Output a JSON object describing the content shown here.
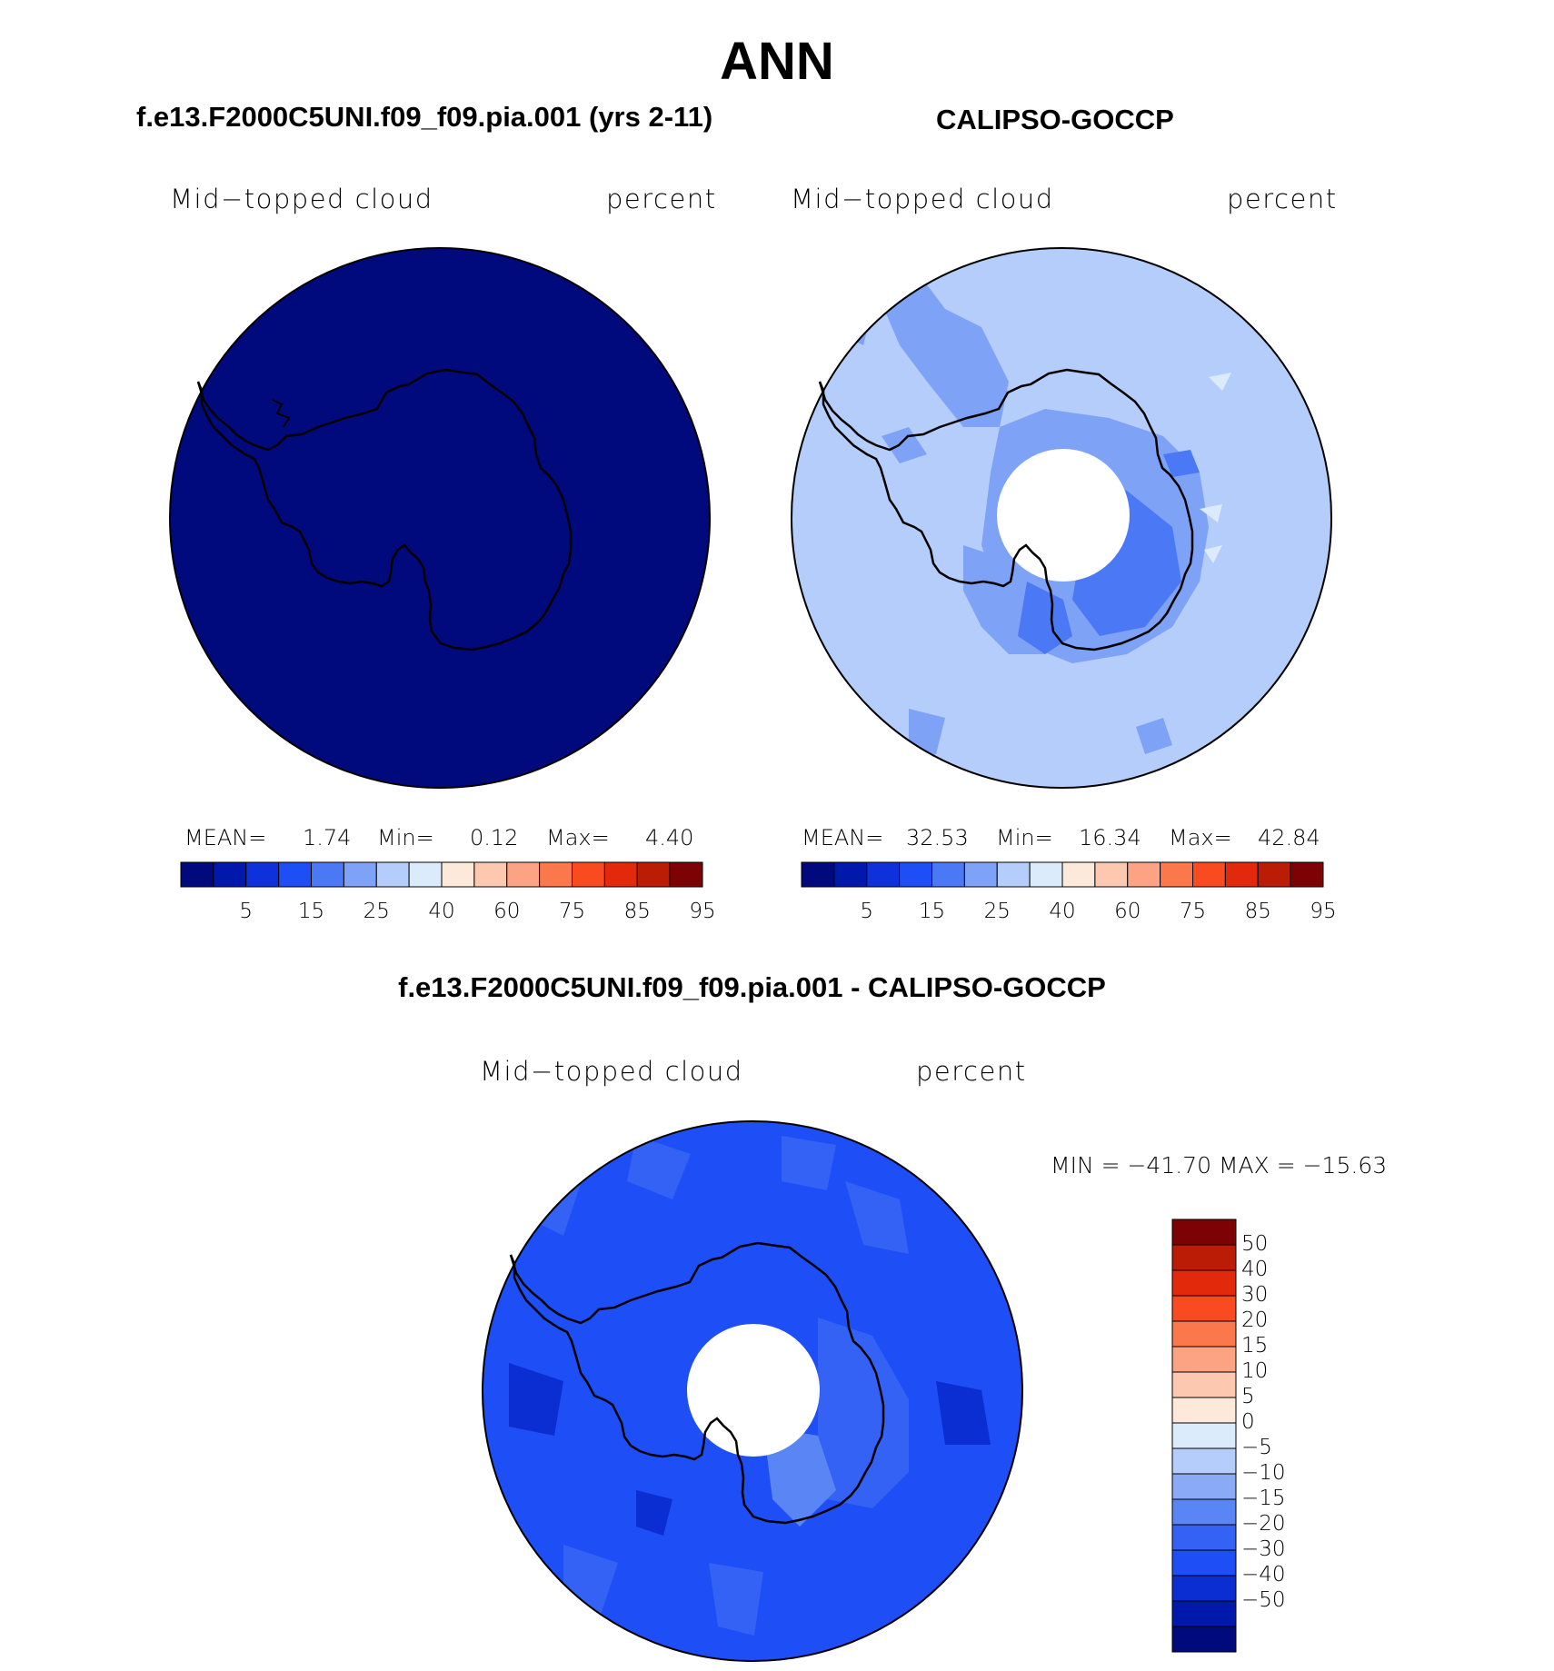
{
  "season": "ANN",
  "colors": {
    "abs_scale": [
      "#000a7d",
      "#0018ab",
      "#0f31dc",
      "#1e4ef5",
      "#4b78f5",
      "#7ea2f5",
      "#b4cdfa",
      "#dcebfc",
      "#fde9d9",
      "#fcc8b0",
      "#fba383",
      "#fb784d",
      "#fa4a1f",
      "#e3290c",
      "#bb1c06",
      "#7d0203"
    ],
    "diff_scale": [
      "#000a7d",
      "#0018ab",
      "#0a2ed2",
      "#1e4ef5",
      "#3362f5",
      "#5a86f5",
      "#8aaaf5",
      "#b4cdfa",
      "#dcebfc",
      "#fde9d9",
      "#fcc8b0",
      "#fba383",
      "#fb784d",
      "#fa4a1f",
      "#e3290c",
      "#bb1c06",
      "#7d0203"
    ]
  },
  "panels": {
    "model": {
      "title": "f.e13.F2000C5UNI.f09_f09.pia.001 (yrs 2-11)",
      "variable": "Mid−topped cloud",
      "units": "percent",
      "mean_label": "MEAN=",
      "mean": "1.74",
      "min_label": "Min=",
      "min": "0.12",
      "max_label": "Max=",
      "max": "4.40"
    },
    "obs": {
      "title": "CALIPSO-GOCCP",
      "variable": "Mid−topped cloud",
      "units": "percent",
      "mean_label": "MEAN=",
      "mean": "32.53",
      "min_label": "Min=",
      "min": "16.34",
      "max_label": "Max=",
      "max": "42.84"
    },
    "diff": {
      "title": "f.e13.F2000C5UNI.f09_f09.pia.001 - CALIPSO-GOCCP",
      "variable": "Mid−topped cloud",
      "units": "percent",
      "minmax": "MIN = −41.70 MAX = −15.63"
    }
  },
  "colorbar_abs": {
    "ticks": [
      "5",
      "15",
      "25",
      "40",
      "60",
      "75",
      "85",
      "95"
    ]
  },
  "colorbar_diff": {
    "ticks": [
      "50",
      "40",
      "30",
      "20",
      "15",
      "10",
      "5",
      "0",
      "−5",
      "−10",
      "−15",
      "−20",
      "−30",
      "−40",
      "−50"
    ]
  }
}
